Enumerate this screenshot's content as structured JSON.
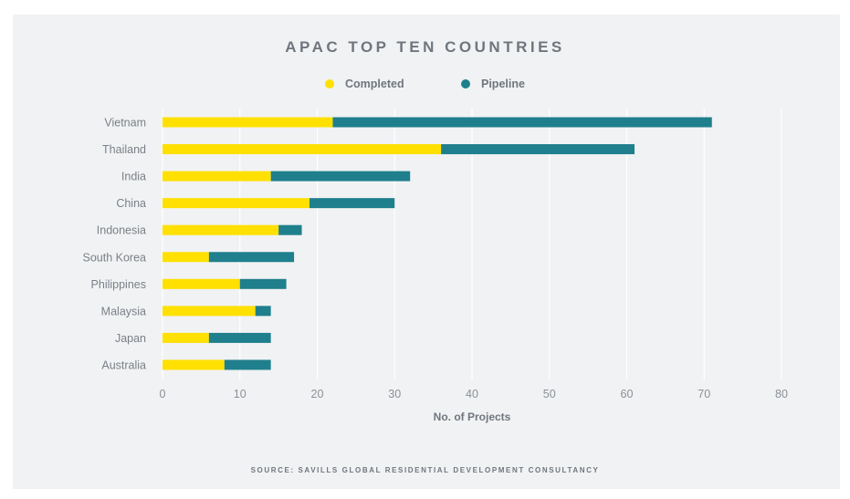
{
  "chart_data": {
    "type": "bar",
    "orientation": "horizontal",
    "stacked": true,
    "title": "APAC TOP TEN COUNTRIES",
    "xlabel": "No. of Projects",
    "ylabel": "",
    "xlim": [
      0,
      80
    ],
    "xticks": [
      0,
      10,
      20,
      30,
      40,
      50,
      60,
      70,
      80
    ],
    "grid": true,
    "legend_position": "top-center",
    "categories": [
      "Vietnam",
      "Thailand",
      "India",
      "China",
      "Indonesia",
      "South Korea",
      "Philippines",
      "Malaysia",
      "Japan",
      "Australia"
    ],
    "series": [
      {
        "name": "Completed",
        "color": "#ffe000",
        "values": [
          22,
          36,
          14,
          19,
          15,
          6,
          10,
          12,
          6,
          8
        ]
      },
      {
        "name": "Pipeline",
        "color": "#1f7f8c",
        "values": [
          49,
          25,
          18,
          11,
          3,
          11,
          6,
          2,
          8,
          6
        ]
      }
    ]
  },
  "source": "SOURCE: SAVILLS GLOBAL RESIDENTIAL DEVELOPMENT CONSULTANCY"
}
